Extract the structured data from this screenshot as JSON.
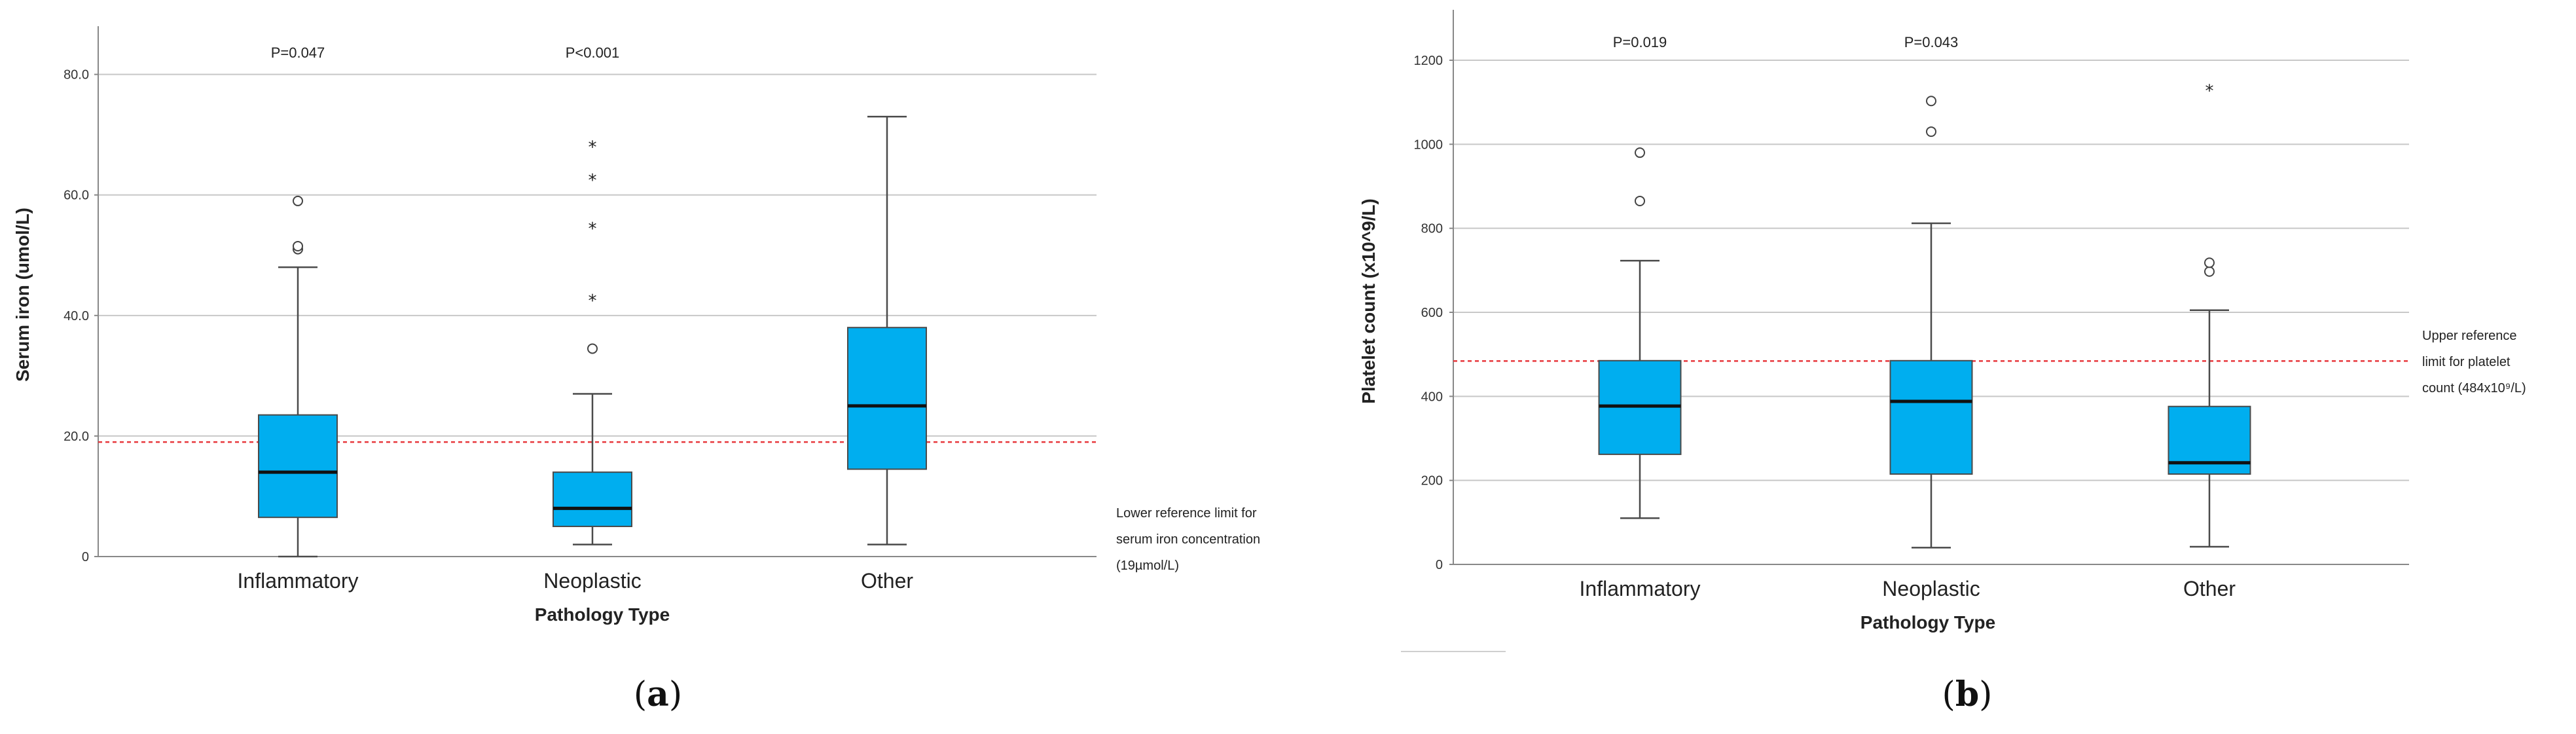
{
  "chart_data": [
    {
      "id": "a",
      "panel_label": "a",
      "type": "boxplot",
      "xlabel": "Pathology Type",
      "ylabel": "Serum iron (umol/L)",
      "ylim": [
        0,
        88
      ],
      "yticks": [
        0,
        20,
        40,
        60,
        80
      ],
      "ytick_labels": [
        "0",
        "20.0",
        "40.0",
        "60.0",
        "80.0"
      ],
      "gridlines": [
        20,
        40,
        60,
        80
      ],
      "categories": [
        "Inflammatory",
        "Neoplastic",
        "Other"
      ],
      "boxes": [
        {
          "category": "Inflammatory",
          "whisker_low": 0,
          "q1": 6.5,
          "median": 14,
          "q3": 23.5,
          "whisker_high": 48,
          "outliers_circle": [
            51,
            51.5,
            59
          ],
          "outliers_star": [],
          "p_label": "P=0.047"
        },
        {
          "category": "Neoplastic",
          "whisker_low": 2,
          "q1": 5,
          "median": 8,
          "q3": 14,
          "whisker_high": 27,
          "outliers_circle": [
            34.5
          ],
          "outliers_star": [
            43,
            55,
            63,
            68.5
          ],
          "p_label": "P<0.001"
        },
        {
          "category": "Other",
          "whisker_low": 2,
          "q1": 14.5,
          "median": 25,
          "q3": 38,
          "whisker_high": 73,
          "outliers_circle": [],
          "outliers_star": [],
          "p_label": ""
        }
      ],
      "reference_line": {
        "value": 19,
        "label_lines": [
          "Lower reference limit for",
          "serum iron concentration",
          "(19µmol/L)"
        ]
      }
    },
    {
      "id": "b",
      "panel_label": "b",
      "type": "boxplot",
      "xlabel": "Pathology Type",
      "ylabel": "Platelet count (x10^9/L)",
      "ylim": [
        0,
        1320
      ],
      "yticks": [
        0,
        200,
        400,
        600,
        800,
        1000,
        1200
      ],
      "ytick_labels": [
        "0",
        "200",
        "400",
        "600",
        "800",
        "1000",
        "1200"
      ],
      "gridlines": [
        200,
        400,
        600,
        800,
        1000,
        1200
      ],
      "categories": [
        "Inflammatory",
        "Neoplastic",
        "Other"
      ],
      "boxes": [
        {
          "category": "Inflammatory",
          "whisker_low": 110,
          "q1": 262,
          "median": 377,
          "q3": 485,
          "whisker_high": 723,
          "outliers_circle": [
            865,
            980
          ],
          "outliers_star": [],
          "p_label": "P=0.019"
        },
        {
          "category": "Neoplastic",
          "whisker_low": 40,
          "q1": 215,
          "median": 388,
          "q3": 485,
          "whisker_high": 812,
          "outliers_circle": [
            1030,
            1103
          ],
          "outliers_star": [],
          "p_label": "P=0.043"
        },
        {
          "category": "Other",
          "whisker_low": 42,
          "q1": 215,
          "median": 242,
          "q3": 376,
          "whisker_high": 605,
          "outliers_circle": [
            697,
            718
          ],
          "outliers_star": [
            1135
          ],
          "p_label": ""
        }
      ],
      "reference_line": {
        "value": 484,
        "label_lines": [
          "Upper reference",
          "limit for platelet",
          "count (484x10⁹/L)"
        ]
      }
    }
  ],
  "colors": {
    "box_fill": "#00AEEF",
    "box_stroke": "#4a4a4a",
    "median": "#111111",
    "gridline": "#c8c8c8",
    "ref_line": "#e8383d"
  }
}
